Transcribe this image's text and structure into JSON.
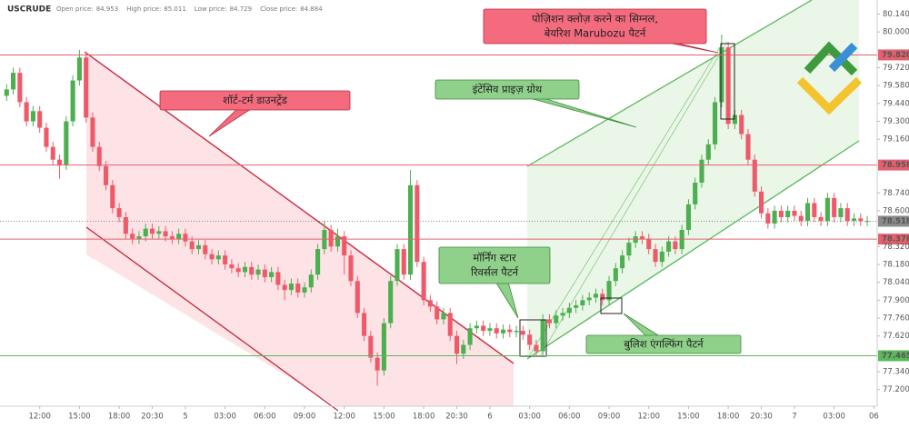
{
  "header": {
    "symbol": "USCRUDE",
    "ohlc": [
      {
        "label": "Open price:",
        "value": 84.953
      },
      {
        "label": "High price:",
        "value": 85.011
      },
      {
        "label": "Low price:",
        "value": 84.729
      },
      {
        "label": "Close price:",
        "value": 84.884
      }
    ]
  },
  "chart_data": {
    "type": "candlestick",
    "up_color": "#4caf50",
    "down_color": "#ef5a6a",
    "open": [
      79.5,
      79.55,
      79.68,
      79.45,
      79.3,
      79.38,
      79.25,
      79.1,
      79.0,
      78.96,
      79.3,
      79.62,
      79.8,
      79.33,
      79.1,
      78.95,
      78.8,
      78.62,
      78.55,
      78.42,
      78.38,
      78.4,
      78.46,
      78.42,
      78.44,
      78.4,
      78.38,
      78.42,
      78.36,
      78.3,
      78.33,
      78.26,
      78.22,
      78.25,
      78.18,
      78.15,
      78.12,
      78.16,
      78.1,
      78.14,
      78.08,
      78.12,
      78.02,
      77.98,
      78.03,
      77.96,
      78.0,
      78.1,
      78.3,
      78.45,
      78.32,
      78.4,
      78.25,
      78.05,
      77.8,
      77.62,
      77.45,
      77.35,
      77.72,
      78.05,
      78.3,
      78.1,
      78.8,
      78.2,
      77.9,
      77.85,
      77.75,
      77.8,
      77.62,
      77.48,
      77.55,
      77.68,
      77.7,
      77.66,
      77.68,
      77.64,
      77.67,
      77.65,
      77.66,
      77.63,
      77.55,
      77.5,
      77.75,
      77.72,
      77.78,
      77.8,
      77.84,
      77.86,
      77.9,
      77.92,
      77.95,
      77.9,
      78.05,
      78.15,
      78.25,
      78.35,
      78.4,
      78.38,
      78.3,
      78.2,
      78.28,
      78.36,
      78.3,
      78.45,
      78.65,
      78.82,
      79.0,
      79.12,
      79.45,
      79.88,
      79.28,
      79.35,
      79.2,
      79.0,
      78.75,
      78.58,
      78.5,
      78.6,
      78.55,
      78.6,
      78.56,
      78.52,
      78.66,
      78.55,
      78.52,
      78.7,
      78.55,
      78.62,
      78.52,
      78.54,
      78.52
    ],
    "high": [
      79.59,
      79.72,
      79.72,
      79.49,
      79.42,
      79.42,
      79.29,
      79.14,
      79.04,
      79.34,
      79.66,
      79.86,
      79.84,
      79.37,
      79.14,
      78.99,
      78.84,
      78.66,
      78.59,
      78.46,
      78.44,
      78.5,
      78.5,
      78.48,
      78.48,
      78.44,
      78.46,
      78.46,
      78.4,
      78.37,
      78.37,
      78.3,
      78.29,
      78.29,
      78.22,
      78.19,
      78.2,
      78.2,
      78.18,
      78.18,
      78.16,
      78.16,
      78.06,
      78.07,
      78.07,
      78.04,
      78.14,
      78.34,
      78.52,
      78.49,
      78.46,
      78.44,
      78.29,
      78.09,
      77.84,
      77.66,
      77.49,
      77.76,
      78.09,
      78.34,
      78.34,
      78.92,
      78.84,
      78.24,
      77.94,
      77.89,
      77.84,
      77.84,
      77.66,
      77.59,
      77.72,
      77.74,
      77.74,
      77.72,
      77.72,
      77.71,
      77.71,
      77.7,
      77.7,
      77.67,
      77.59,
      77.79,
      77.79,
      77.82,
      77.84,
      77.88,
      77.9,
      77.94,
      77.96,
      77.99,
      77.99,
      78.09,
      78.19,
      78.29,
      78.39,
      78.44,
      78.44,
      78.42,
      78.34,
      78.32,
      78.4,
      78.4,
      78.49,
      78.69,
      78.86,
      79.04,
      79.16,
      79.49,
      79.98,
      79.92,
      79.39,
      79.39,
      79.24,
      79.04,
      78.79,
      78.62,
      78.64,
      78.64,
      78.64,
      78.64,
      78.6,
      78.7,
      78.7,
      78.59,
      78.74,
      78.74,
      78.66,
      78.66,
      78.58,
      78.58,
      78.56
    ],
    "low": [
      79.46,
      79.51,
      79.41,
      79.26,
      79.26,
      79.21,
      79.06,
      78.96,
      78.85,
      78.92,
      79.26,
      79.58,
      79.29,
      79.06,
      78.91,
      78.76,
      78.58,
      78.51,
      78.38,
      78.34,
      78.34,
      78.36,
      78.38,
      78.38,
      78.36,
      78.34,
      78.34,
      78.32,
      78.26,
      78.26,
      78.22,
      78.18,
      78.18,
      78.14,
      78.11,
      78.08,
      78.08,
      78.06,
      78.06,
      78.04,
      78.04,
      77.98,
      77.9,
      77.94,
      77.92,
      77.92,
      77.96,
      78.06,
      78.26,
      78.28,
      78.28,
      78.1,
      78.01,
      77.76,
      77.58,
      77.41,
      77.23,
      77.31,
      77.68,
      78.01,
      78.06,
      78.06,
      78.16,
      77.86,
      77.81,
      77.71,
      77.71,
      77.58,
      77.4,
      77.44,
      77.51,
      77.64,
      77.62,
      77.62,
      77.6,
      77.6,
      77.61,
      77.61,
      77.59,
      77.51,
      77.46,
      77.46,
      77.68,
      77.68,
      77.74,
      77.76,
      77.8,
      77.82,
      77.86,
      77.88,
      77.86,
      77.86,
      78.01,
      78.11,
      78.21,
      78.31,
      78.34,
      78.26,
      78.16,
      78.16,
      78.24,
      78.26,
      78.26,
      78.41,
      78.61,
      78.78,
      78.96,
      79.08,
      79.41,
      79.24,
      79.24,
      79.16,
      78.96,
      78.71,
      78.54,
      78.46,
      78.46,
      78.51,
      78.51,
      78.52,
      78.48,
      78.48,
      78.51,
      78.48,
      78.48,
      78.51,
      78.51,
      78.48,
      78.48,
      78.48,
      78.48
    ],
    "close": [
      79.55,
      79.68,
      79.45,
      79.3,
      79.38,
      79.25,
      79.1,
      79.0,
      78.96,
      79.3,
      79.62,
      79.8,
      79.33,
      79.1,
      78.95,
      78.8,
      78.62,
      78.55,
      78.42,
      78.38,
      78.4,
      78.46,
      78.42,
      78.44,
      78.4,
      78.38,
      78.42,
      78.36,
      78.3,
      78.33,
      78.26,
      78.22,
      78.25,
      78.18,
      78.15,
      78.12,
      78.16,
      78.1,
      78.14,
      78.08,
      78.12,
      78.02,
      77.98,
      78.03,
      77.96,
      78.0,
      78.1,
      78.3,
      78.45,
      78.32,
      78.4,
      78.25,
      78.05,
      77.8,
      77.62,
      77.45,
      77.35,
      77.72,
      78.05,
      78.3,
      78.1,
      78.8,
      78.2,
      77.9,
      77.85,
      77.75,
      77.8,
      77.62,
      77.48,
      77.55,
      77.68,
      77.7,
      77.66,
      77.68,
      77.64,
      77.67,
      77.65,
      77.66,
      77.63,
      77.55,
      77.5,
      77.75,
      77.72,
      77.78,
      77.8,
      77.84,
      77.86,
      77.9,
      77.92,
      77.95,
      77.9,
      78.05,
      78.15,
      78.25,
      78.35,
      78.4,
      78.38,
      78.3,
      78.2,
      78.28,
      78.36,
      78.3,
      78.45,
      78.65,
      78.82,
      79.0,
      79.12,
      79.45,
      79.88,
      79.28,
      79.35,
      79.2,
      79.0,
      78.75,
      78.58,
      78.5,
      78.6,
      78.55,
      78.6,
      78.56,
      78.52,
      78.66,
      78.55,
      78.52,
      78.7,
      78.55,
      78.62,
      78.52,
      78.54,
      78.52,
      78.52
    ],
    "xlim": [
      -1,
      131.5
    ],
    "xticks": [
      {
        "value": 5,
        "label": "12:00"
      },
      {
        "value": 11,
        "label": "15:00"
      },
      {
        "value": 17,
        "label": "18:00"
      },
      {
        "value": 22,
        "label": "20:30"
      },
      {
        "value": 27,
        "label": "5"
      },
      {
        "value": 33,
        "label": "03:00"
      },
      {
        "value": 39,
        "label": "06:00"
      },
      {
        "value": 45,
        "label": "09:00"
      },
      {
        "value": 51,
        "label": "12:00"
      },
      {
        "value": 57,
        "label": "15:00"
      },
      {
        "value": 63,
        "label": "18:00"
      },
      {
        "value": 68,
        "label": "20:30"
      },
      {
        "value": 73,
        "label": "6"
      },
      {
        "value": 79,
        "label": "03:00"
      },
      {
        "value": 85,
        "label": "06:00"
      },
      {
        "value": 91,
        "label": "09:00"
      },
      {
        "value": 97,
        "label": "12:00"
      },
      {
        "value": 103,
        "label": "15:00"
      },
      {
        "value": 109,
        "label": "18:00"
      },
      {
        "value": 114,
        "label": "20:30"
      },
      {
        "value": 119,
        "label": "7"
      },
      {
        "value": 125,
        "label": "03:00"
      },
      {
        "value": 131,
        "label": "06"
      }
    ],
    "ylim": [
      77.07,
      80.25
    ],
    "yticks": [
      {
        "value": 80.14,
        "label": "80.140"
      },
      {
        "value": 80.0,
        "label": "80.000"
      },
      {
        "value": 79.72,
        "label": "79.720"
      },
      {
        "value": 79.58,
        "label": "79.580"
      },
      {
        "value": 79.44,
        "label": "79.440"
      },
      {
        "value": 79.3,
        "label": "79.300"
      },
      {
        "value": 79.16,
        "label": "79.160"
      },
      {
        "value": 78.74,
        "label": "78.740"
      },
      {
        "value": 78.6,
        "label": "78.600"
      },
      {
        "value": 78.32,
        "label": "78.320"
      },
      {
        "value": 78.18,
        "label": "78.180"
      },
      {
        "value": 78.04,
        "label": "78.040"
      },
      {
        "value": 77.9,
        "label": "77.900"
      },
      {
        "value": 77.76,
        "label": "77.760"
      },
      {
        "value": 77.62,
        "label": "77.620"
      },
      {
        "value": 77.34,
        "label": "77.340"
      },
      {
        "value": 77.2,
        "label": "77.200"
      }
    ],
    "grid": false,
    "levels": [
      {
        "value": 79.82,
        "label": "79.820",
        "color": "#e4606e"
      },
      {
        "value": 78.958,
        "label": "78.958",
        "color": "#e4606e"
      },
      {
        "value": 78.378,
        "label": "78.378",
        "color": "#e4606e"
      },
      {
        "value": 77.465,
        "label": "77.465",
        "color": "#5cb85c"
      }
    ],
    "last_price": {
      "value": 78.518,
      "label": "78.518",
      "color": "#8a8a8a"
    },
    "annotations": [
      {
        "lines": [
          "शॉर्ट-टर्म डाउनट्रेंड"
        ],
        "color": "#f46b7e"
      },
      {
        "lines": [
          "पोज़िशन क्लोज़ करने का सिग्नल,",
          "बेयरिश Marubozu पैटर्न"
        ],
        "color": "#f46b7e"
      },
      {
        "lines": [
          "इंटेंसिव प्राइज़ ग्रोथ"
        ],
        "color": "#8fd08a"
      },
      {
        "lines": [
          "मॉर्निंग स्टार",
          "रिवर्सल पैटर्न"
        ],
        "color": "#8fd08a"
      },
      {
        "lines": [
          "बुलिश एंगल्फिंग पैटर्न"
        ],
        "color": "#8fd08a"
      }
    ]
  }
}
